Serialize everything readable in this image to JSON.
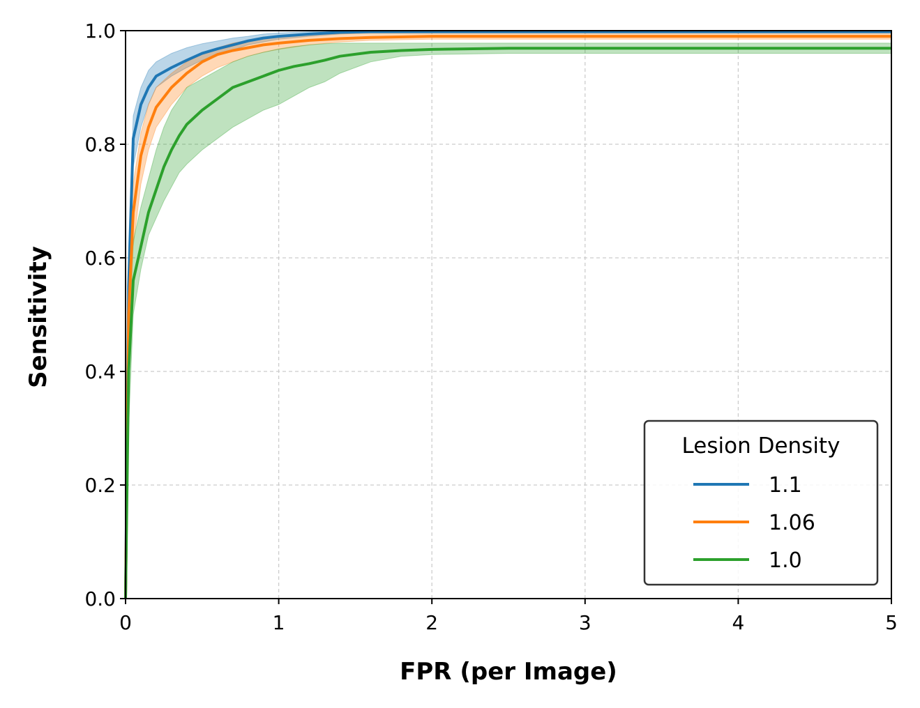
{
  "chart_data": {
    "type": "line",
    "title": "",
    "xlabel": "FPR (per Image)",
    "ylabel": "Sensitivity",
    "xlim": [
      0,
      5
    ],
    "ylim": [
      0.0,
      1.0
    ],
    "xticks": [
      "0",
      "1",
      "2",
      "3",
      "4",
      "5"
    ],
    "yticks": [
      "0.0",
      "0.2",
      "0.4",
      "0.6",
      "0.8",
      "1.0"
    ],
    "grid": true,
    "legend": {
      "title": "Lesion Density",
      "position": "lower-right"
    },
    "series": [
      {
        "name": "1.1",
        "color": "#1f77b4",
        "x": [
          0,
          0.02,
          0.05,
          0.1,
          0.15,
          0.2,
          0.3,
          0.4,
          0.5,
          0.6,
          0.7,
          0.8,
          0.9,
          1.0,
          1.2,
          1.4,
          1.6,
          2.0,
          3.0,
          4.0,
          5.0
        ],
        "y": [
          0,
          0.55,
          0.81,
          0.87,
          0.9,
          0.92,
          0.935,
          0.948,
          0.96,
          0.968,
          0.975,
          0.982,
          0.987,
          0.99,
          0.994,
          0.997,
          0.998,
          0.998,
          0.998,
          0.998,
          0.998
        ],
        "lower": [
          0,
          0.45,
          0.76,
          0.83,
          0.87,
          0.9,
          0.92,
          0.935,
          0.948,
          0.957,
          0.966,
          0.975,
          0.98,
          0.985,
          0.99,
          0.994,
          0.996,
          0.996,
          0.996,
          0.996,
          0.996
        ],
        "upper": [
          0,
          0.62,
          0.85,
          0.9,
          0.93,
          0.945,
          0.96,
          0.97,
          0.977,
          0.982,
          0.987,
          0.99,
          0.994,
          0.996,
          0.998,
          0.999,
          1.0,
          1.0,
          1.0,
          1.0,
          1.0
        ]
      },
      {
        "name": "1.06",
        "color": "#ff7f0e",
        "x": [
          0,
          0.02,
          0.05,
          0.1,
          0.15,
          0.2,
          0.3,
          0.4,
          0.5,
          0.6,
          0.7,
          0.8,
          0.9,
          1.0,
          1.2,
          1.4,
          1.6,
          2.0,
          3.0,
          4.0,
          5.0
        ],
        "y": [
          0,
          0.5,
          0.68,
          0.78,
          0.83,
          0.865,
          0.9,
          0.925,
          0.945,
          0.958,
          0.965,
          0.97,
          0.975,
          0.978,
          0.983,
          0.986,
          0.988,
          0.99,
          0.99,
          0.99,
          0.99
        ],
        "lower": [
          0,
          0.42,
          0.62,
          0.73,
          0.79,
          0.83,
          0.87,
          0.9,
          0.92,
          0.935,
          0.945,
          0.955,
          0.962,
          0.967,
          0.975,
          0.98,
          0.983,
          0.985,
          0.985,
          0.985,
          0.985
        ],
        "upper": [
          0,
          0.58,
          0.73,
          0.82,
          0.87,
          0.9,
          0.925,
          0.945,
          0.96,
          0.97,
          0.978,
          0.983,
          0.987,
          0.99,
          0.993,
          0.995,
          0.996,
          0.996,
          0.996,
          0.996,
          0.996
        ]
      },
      {
        "name": "1.0",
        "color": "#2ca02c",
        "x": [
          0,
          0.02,
          0.05,
          0.1,
          0.15,
          0.2,
          0.25,
          0.3,
          0.35,
          0.4,
          0.5,
          0.6,
          0.7,
          0.8,
          0.9,
          1.0,
          1.1,
          1.2,
          1.3,
          1.4,
          1.6,
          1.8,
          2.0,
          2.5,
          3.0,
          4.0,
          5.0
        ],
        "y": [
          0,
          0.4,
          0.56,
          0.62,
          0.68,
          0.72,
          0.76,
          0.79,
          0.815,
          0.835,
          0.86,
          0.88,
          0.9,
          0.91,
          0.92,
          0.93,
          0.937,
          0.942,
          0.948,
          0.955,
          0.962,
          0.965,
          0.967,
          0.969,
          0.969,
          0.969,
          0.969
        ],
        "lower": [
          0,
          0.3,
          0.5,
          0.58,
          0.64,
          0.67,
          0.7,
          0.725,
          0.75,
          0.765,
          0.79,
          0.81,
          0.83,
          0.845,
          0.86,
          0.87,
          0.885,
          0.9,
          0.91,
          0.925,
          0.945,
          0.955,
          0.958,
          0.96,
          0.96,
          0.96,
          0.96
        ],
        "upper": [
          0,
          0.5,
          0.63,
          0.69,
          0.74,
          0.79,
          0.83,
          0.86,
          0.88,
          0.9,
          0.915,
          0.93,
          0.945,
          0.955,
          0.962,
          0.968,
          0.972,
          0.975,
          0.977,
          0.978,
          0.978,
          0.978,
          0.978,
          0.978,
          0.978,
          0.978,
          0.978
        ]
      }
    ]
  }
}
